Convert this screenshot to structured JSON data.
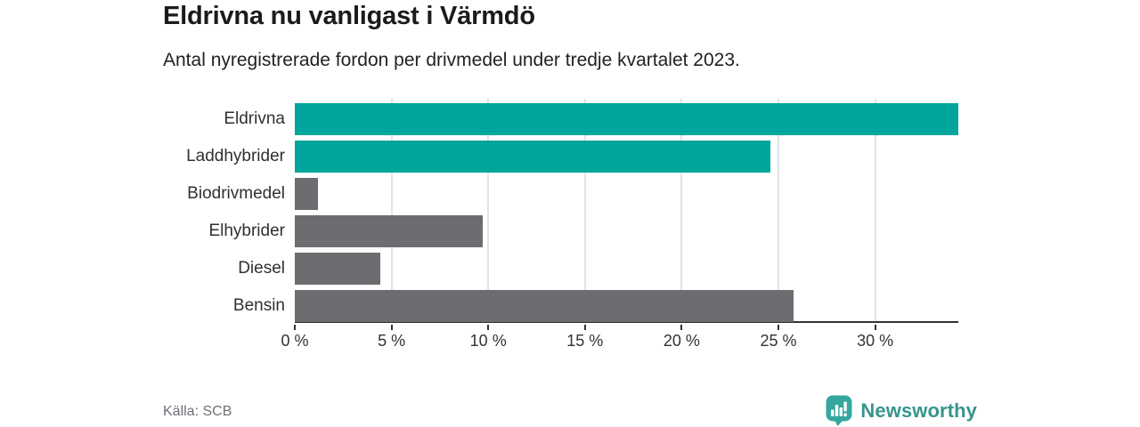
{
  "header": {
    "title": "Eldrivna nu vanligast i Värmdö",
    "subtitle": "Antal nyregistrerade fordon per drivmedel under tredje kvartalet 2023."
  },
  "chart_data": {
    "type": "bar",
    "orientation": "horizontal",
    "title": "Eldrivna nu vanligast i Värmdö",
    "subtitle": "Antal nyregistrerade fordon per drivmedel under tredje kvartalet 2023.",
    "categories": [
      "Eldrivna",
      "Laddhybrider",
      "Biodrivmedel",
      "Elhybrider",
      "Diesel",
      "Bensin"
    ],
    "values": [
      34.3,
      24.6,
      1.2,
      9.7,
      4.4,
      25.8
    ],
    "unit": "%",
    "xlabel": "",
    "ylabel": "",
    "xlim": [
      0,
      34.3
    ],
    "xticks": [
      {
        "value": 0,
        "label": "0 %"
      },
      {
        "value": 5,
        "label": "5 %"
      },
      {
        "value": 10,
        "label": "10 %"
      },
      {
        "value": 15,
        "label": "15 %"
      },
      {
        "value": 20,
        "label": "20 %"
      },
      {
        "value": 25,
        "label": "25 %"
      },
      {
        "value": 30,
        "label": "30 %"
      }
    ],
    "bar_colors": [
      "#00a69c",
      "#00a69c",
      "#6c6c71",
      "#6c6c71",
      "#6c6c71",
      "#6c6c71"
    ],
    "highlight_color": "#00a69c",
    "default_color": "#6c6c71",
    "grid": "vertical",
    "legend": "none"
  },
  "footer": {
    "source": "Källa: SCB",
    "brand": "Newsworthy"
  },
  "colors": {
    "title_text": "#1b1b1b",
    "axis_text": "#333333",
    "gridline": "#e3e3e3",
    "axis_line": "#333333",
    "source_text": "#6f7078",
    "brand_teal": "#37948e",
    "brand_icon_teal": "#35a79e"
  }
}
